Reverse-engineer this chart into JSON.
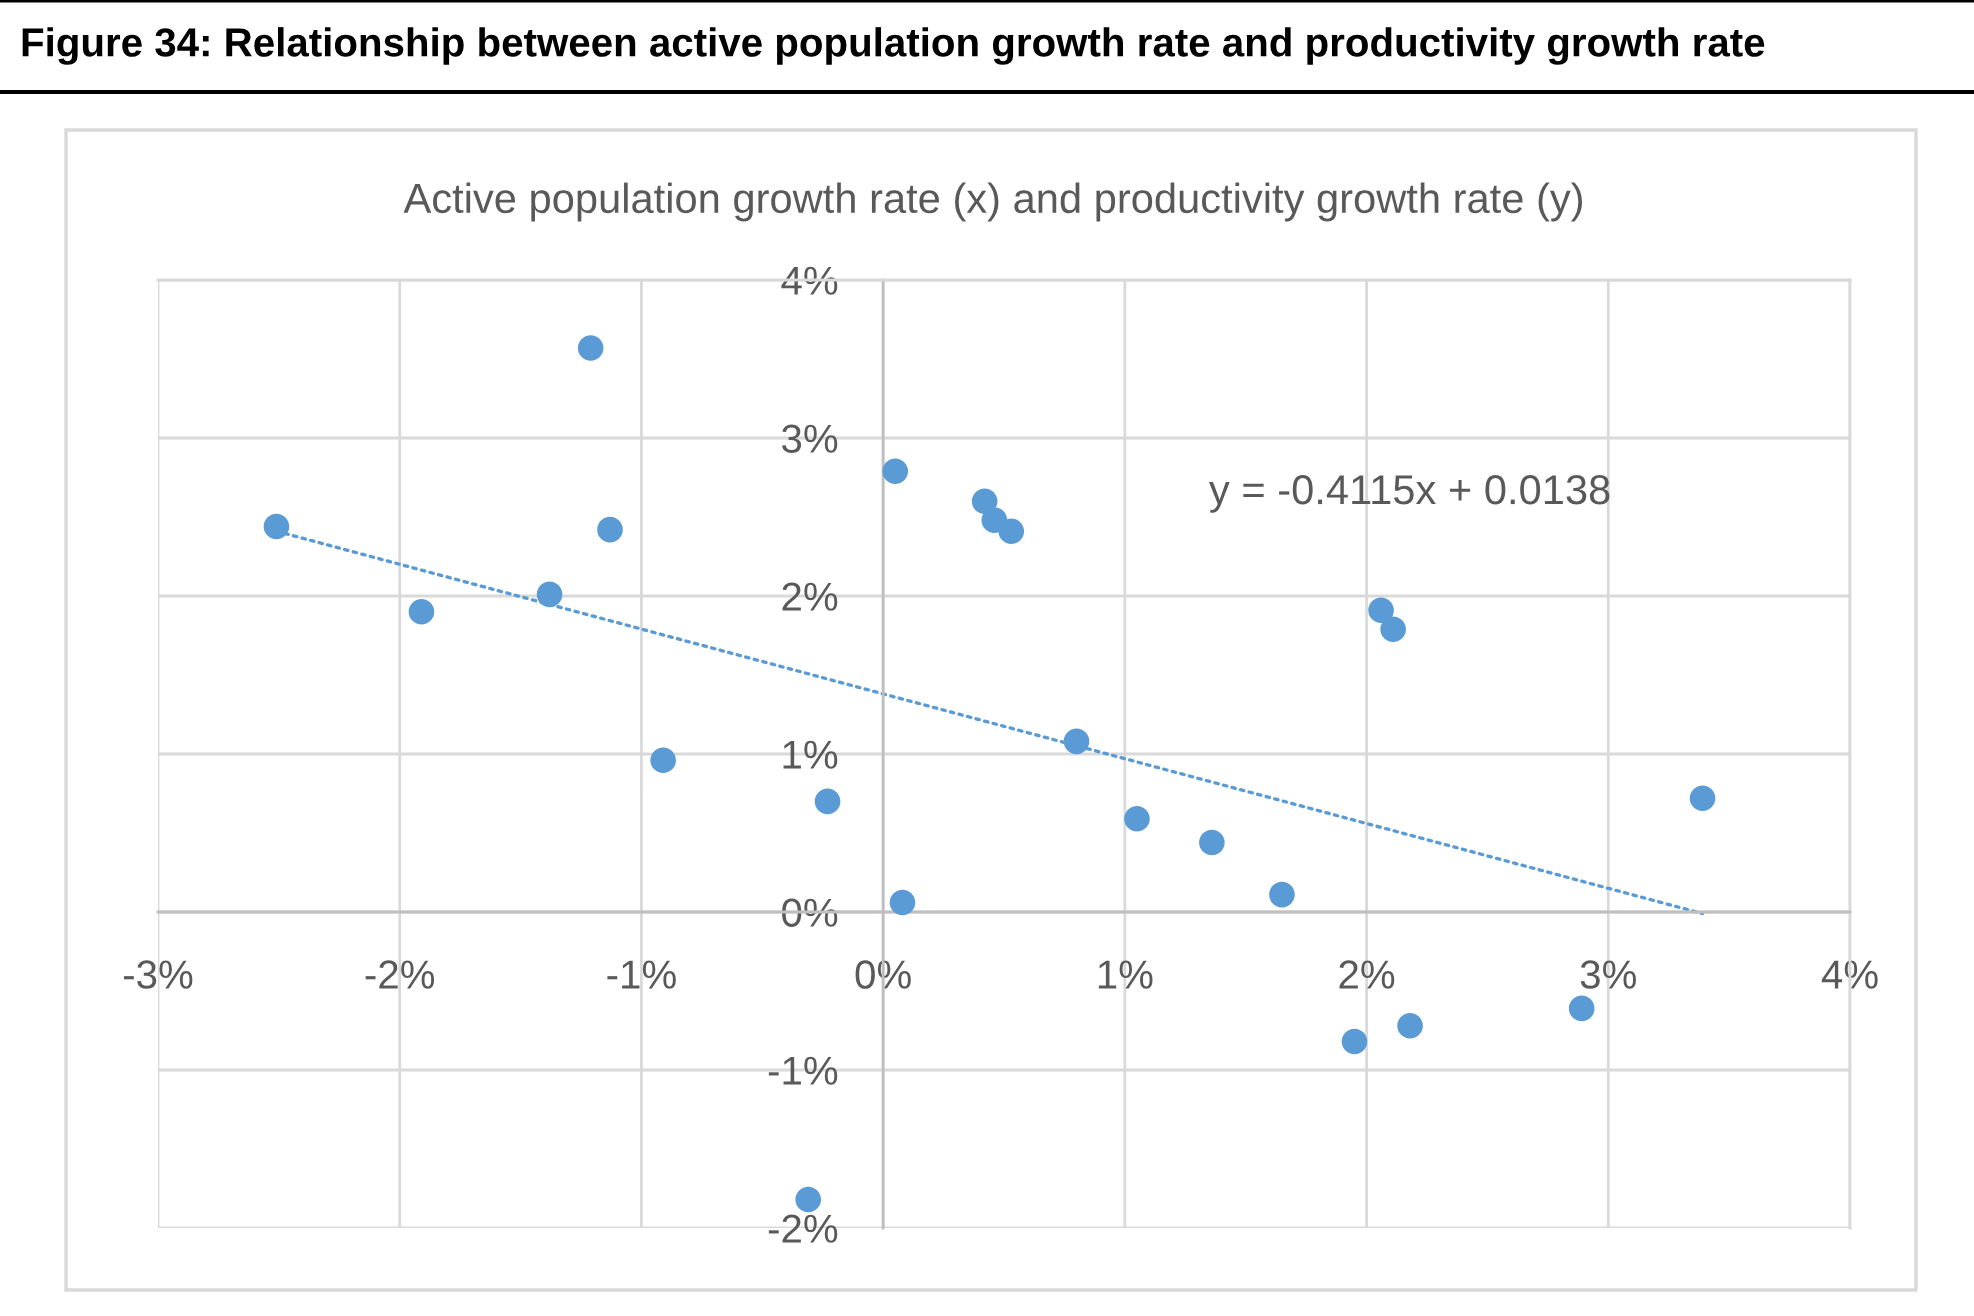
{
  "chart_data": {
    "type": "scatter",
    "title": "Figure 34: Relationship between active population growth rate and productivity growth rate",
    "subtitle": "Active population growth rate (x) and productivity growth rate (y)",
    "annotations": [
      "y = -0.4115x + 0.0138"
    ],
    "series": [
      {
        "color": "#5b9bd5",
        "marker": "circle",
        "x": [
          -2.51,
          -1.91,
          -1.38,
          -1.21,
          -1.13,
          -0.91,
          -0.31,
          -0.23,
          0.05,
          0.08,
          0.42,
          0.46,
          0.53,
          0.8,
          1.05,
          1.36,
          1.65,
          1.95,
          2.06,
          2.11,
          2.18,
          2.89,
          3.39
        ],
        "values": [
          2.44,
          1.9,
          2.01,
          3.57,
          2.42,
          0.96,
          -1.82,
          0.7,
          2.79,
          0.06,
          2.6,
          2.48,
          2.41,
          1.08,
          0.59,
          0.44,
          0.11,
          -0.82,
          1.91,
          1.79,
          -0.72,
          -0.61,
          0.72
        ]
      },
      {
        "type": "line",
        "color": "#5b9bd5",
        "line_style": "dotted",
        "x": [
          -2.51,
          3.39
        ],
        "values": [
          2.41,
          -0.01
        ]
      }
    ],
    "xlim": [
      -3,
      4
    ],
    "ylim": [
      -2,
      4
    ],
    "xticks": [
      {
        "value": -3,
        "label": "-3%"
      },
      {
        "value": -2,
        "label": "-2%"
      },
      {
        "value": -1,
        "label": "-1%"
      },
      {
        "value": 0,
        "label": "0%"
      },
      {
        "value": 1,
        "label": "1%"
      },
      {
        "value": 2,
        "label": "2%"
      },
      {
        "value": 3,
        "label": "3%"
      },
      {
        "value": 4,
        "label": "4%"
      }
    ],
    "yticks": [
      {
        "value": -2,
        "label": "-2%"
      },
      {
        "value": -1,
        "label": "-1%"
      },
      {
        "value": 0,
        "label": "0%"
      },
      {
        "value": 1,
        "label": "1%"
      },
      {
        "value": 2,
        "label": "2%"
      },
      {
        "value": 3,
        "label": "3%"
      },
      {
        "value": 4,
        "label": "4%"
      }
    ],
    "grid": true
  }
}
